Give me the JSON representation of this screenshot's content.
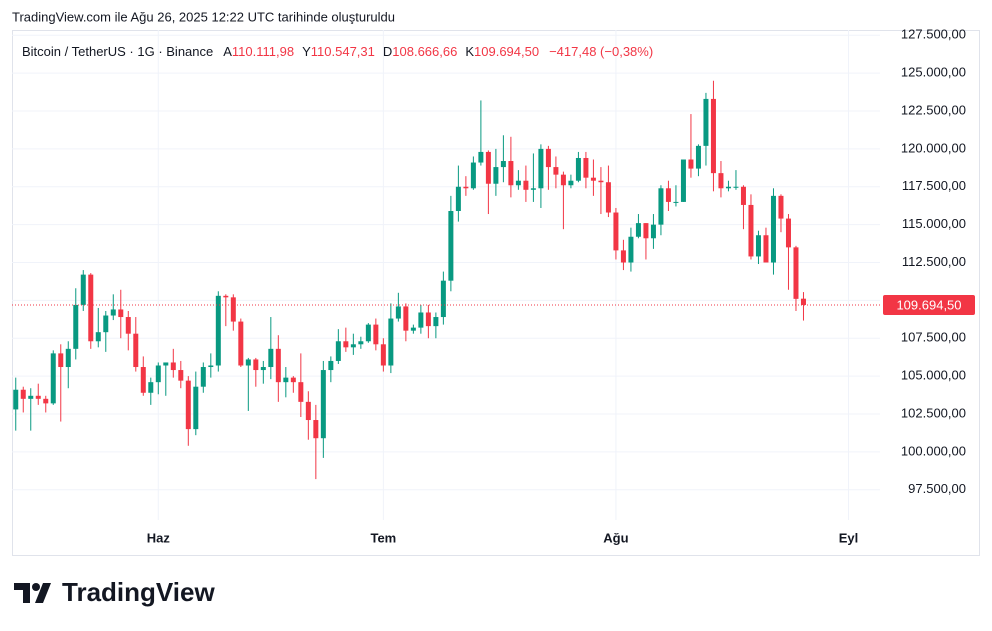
{
  "header": {
    "title": "TradingView.com ile Ağu 26, 2025 12:22 UTC tarihinde oluşturuldu"
  },
  "legend": {
    "symbol": "Bitcoin / TetherUS · 1G · Binance",
    "ohlc": [
      {
        "key": "A",
        "value": "110.111,98"
      },
      {
        "key": "Y",
        "value": "110.547,31"
      },
      {
        "key": "D",
        "value": "108.666,66"
      },
      {
        "key": "K",
        "value": "109.694,50"
      }
    ],
    "change": "−417,48 (−0,38%)"
  },
  "logo": {
    "text": "TradingView"
  },
  "chart_data": {
    "type": "candlestick",
    "up_color": "#089981",
    "down_color": "#f23645",
    "grid": true,
    "xlim": [
      -0.5,
      115.2
    ],
    "xticks": [
      {
        "value": 19,
        "label": "Haz"
      },
      {
        "value": 49,
        "label": "Tem"
      },
      {
        "value": 80,
        "label": "Ağu"
      },
      {
        "value": 111,
        "label": "Eyl"
      }
    ],
    "ylim": [
      95500,
      127850
    ],
    "yticks": [
      {
        "value": 97500,
        "label": "97.500,00"
      },
      {
        "value": 100000,
        "label": "100.000,00"
      },
      {
        "value": 102500,
        "label": "102.500,00"
      },
      {
        "value": 105000,
        "label": "105.000,00"
      },
      {
        "value": 107500,
        "label": "107.500,00"
      },
      {
        "value": 110000,
        "label": "110.000,00"
      },
      {
        "value": 112500,
        "label": "112.500,00"
      },
      {
        "value": 115000,
        "label": "115.000,00"
      },
      {
        "value": 117500,
        "label": "117.500,00"
      },
      {
        "value": 120000,
        "label": "120.000,00"
      },
      {
        "value": 122500,
        "label": "122.500,00"
      },
      {
        "value": 125000,
        "label": "125.000,00"
      },
      {
        "value": 127500,
        "label": "127.500,00"
      }
    ],
    "last_price": {
      "value": 109694.5,
      "label": "109.694,50"
    },
    "open": [
      102800,
      104100,
      103500,
      103700,
      103500,
      103200,
      106500,
      105600,
      106800,
      109700,
      111700,
      107300,
      107900,
      109000,
      109400,
      108900,
      107800,
      105600,
      103900,
      104600,
      105700,
      105900,
      105400,
      104700,
      101500,
      104300,
      105600,
      105700,
      110300,
      110200,
      108600,
      105700,
      106100,
      105400,
      105600,
      106800,
      104600,
      104900,
      104600,
      103300,
      102100,
      100900,
      105400,
      106000,
      107300,
      106900,
      107100,
      107300,
      108400,
      107100,
      105700,
      108800,
      109600,
      108000,
      108200,
      109200,
      108300,
      108900,
      111300,
      115900,
      117500,
      117400,
      119100,
      119800,
      117700,
      118800,
      119200,
      117600,
      117900,
      117300,
      117400,
      120000,
      118800,
      118300,
      117600,
      117900,
      119400,
      118100,
      117900,
      117800,
      115800,
      113300,
      112500,
      114200,
      115100,
      114100,
      115000,
      117400,
      116500,
      116500,
      119300,
      118700,
      120200,
      123300,
      118400,
      117400,
      117500,
      117500,
      116300,
      112900,
      114300,
      112500,
      116900,
      115400,
      113500,
      110111.98
    ],
    "high": [
      104900,
      104300,
      104200,
      104500,
      103700,
      106700,
      107100,
      107300,
      110800,
      112000,
      111800,
      109500,
      109300,
      110400,
      110700,
      109300,
      108900,
      106300,
      104900,
      105900,
      105900,
      106800,
      106000,
      105000,
      105300,
      105900,
      106500,
      110600,
      110400,
      110400,
      108800,
      106200,
      106200,
      106000,
      108900,
      107700,
      105600,
      105000,
      106500,
      104000,
      103100,
      106000,
      106300,
      108100,
      108200,
      107800,
      107600,
      108500,
      108800,
      107500,
      109800,
      110500,
      109800,
      108400,
      109700,
      109700,
      109200,
      111900,
      116900,
      118900,
      118200,
      119500,
      123200,
      119900,
      120000,
      120900,
      120800,
      118600,
      118900,
      119700,
      120300,
      120200,
      119500,
      118500,
      118300,
      119800,
      119800,
      119300,
      118800,
      118900,
      116100,
      114000,
      114800,
      115700,
      115100,
      115700,
      117600,
      117900,
      117600,
      119300,
      122300,
      120300,
      123700,
      124500,
      119200,
      117900,
      118600,
      117600,
      117000,
      114600,
      114800,
      117400,
      117000,
      115700,
      113600,
      110547.31
    ],
    "low": [
      101400,
      102600,
      101400,
      103100,
      102600,
      103100,
      102000,
      104200,
      106100,
      109300,
      106800,
      106900,
      106600,
      108700,
      107500,
      106700,
      105300,
      103700,
      103100,
      103800,
      103700,
      104900,
      104200,
      100400,
      101100,
      103900,
      104900,
      105300,
      108300,
      108000,
      105600,
      102700,
      104300,
      104500,
      104800,
      103300,
      103600,
      103900,
      102300,
      100800,
      98200,
      99600,
      104600,
      105800,
      106600,
      106400,
      106800,
      107200,
      106700,
      105300,
      105200,
      108600,
      107300,
      107800,
      107800,
      107500,
      107500,
      108400,
      110600,
      115200,
      116900,
      117300,
      118900,
      115700,
      116900,
      117800,
      116800,
      117300,
      116500,
      116500,
      116100,
      117300,
      117400,
      114700,
      117400,
      117800,
      117400,
      116900,
      115700,
      115500,
      112700,
      112000,
      111900,
      114100,
      112700,
      113400,
      114300,
      115900,
      116200,
      116500,
      118100,
      118200,
      118900,
      117200,
      116800,
      117200,
      117300,
      114700,
      112700,
      112400,
      112600,
      111700,
      114500,
      110700,
      109300,
      108666.66
    ],
    "close": [
      104100,
      103500,
      103700,
      103500,
      103200,
      106500,
      105600,
      106800,
      109700,
      111700,
      107300,
      107900,
      109000,
      109400,
      108900,
      107800,
      105600,
      103900,
      104600,
      105700,
      105900,
      105400,
      104700,
      101500,
      104300,
      105600,
      105700,
      110300,
      110200,
      108600,
      105700,
      106100,
      105400,
      105600,
      106800,
      104600,
      104900,
      104600,
      103300,
      102100,
      100900,
      105400,
      106000,
      107300,
      106900,
      107100,
      107300,
      108400,
      107100,
      105700,
      108800,
      109600,
      108000,
      108200,
      109200,
      108300,
      108900,
      111300,
      115900,
      117500,
      117400,
      119100,
      119800,
      117700,
      118800,
      119200,
      117600,
      117900,
      117300,
      117400,
      120000,
      118800,
      118300,
      117600,
      117900,
      119400,
      118100,
      117900,
      117800,
      115800,
      113300,
      112500,
      114200,
      115100,
      114100,
      115000,
      117400,
      116500,
      116500,
      119300,
      118700,
      120200,
      123300,
      118400,
      117400,
      117500,
      117500,
      116300,
      112900,
      114300,
      112500,
      116900,
      115400,
      113500,
      110100,
      109694.5
    ]
  }
}
